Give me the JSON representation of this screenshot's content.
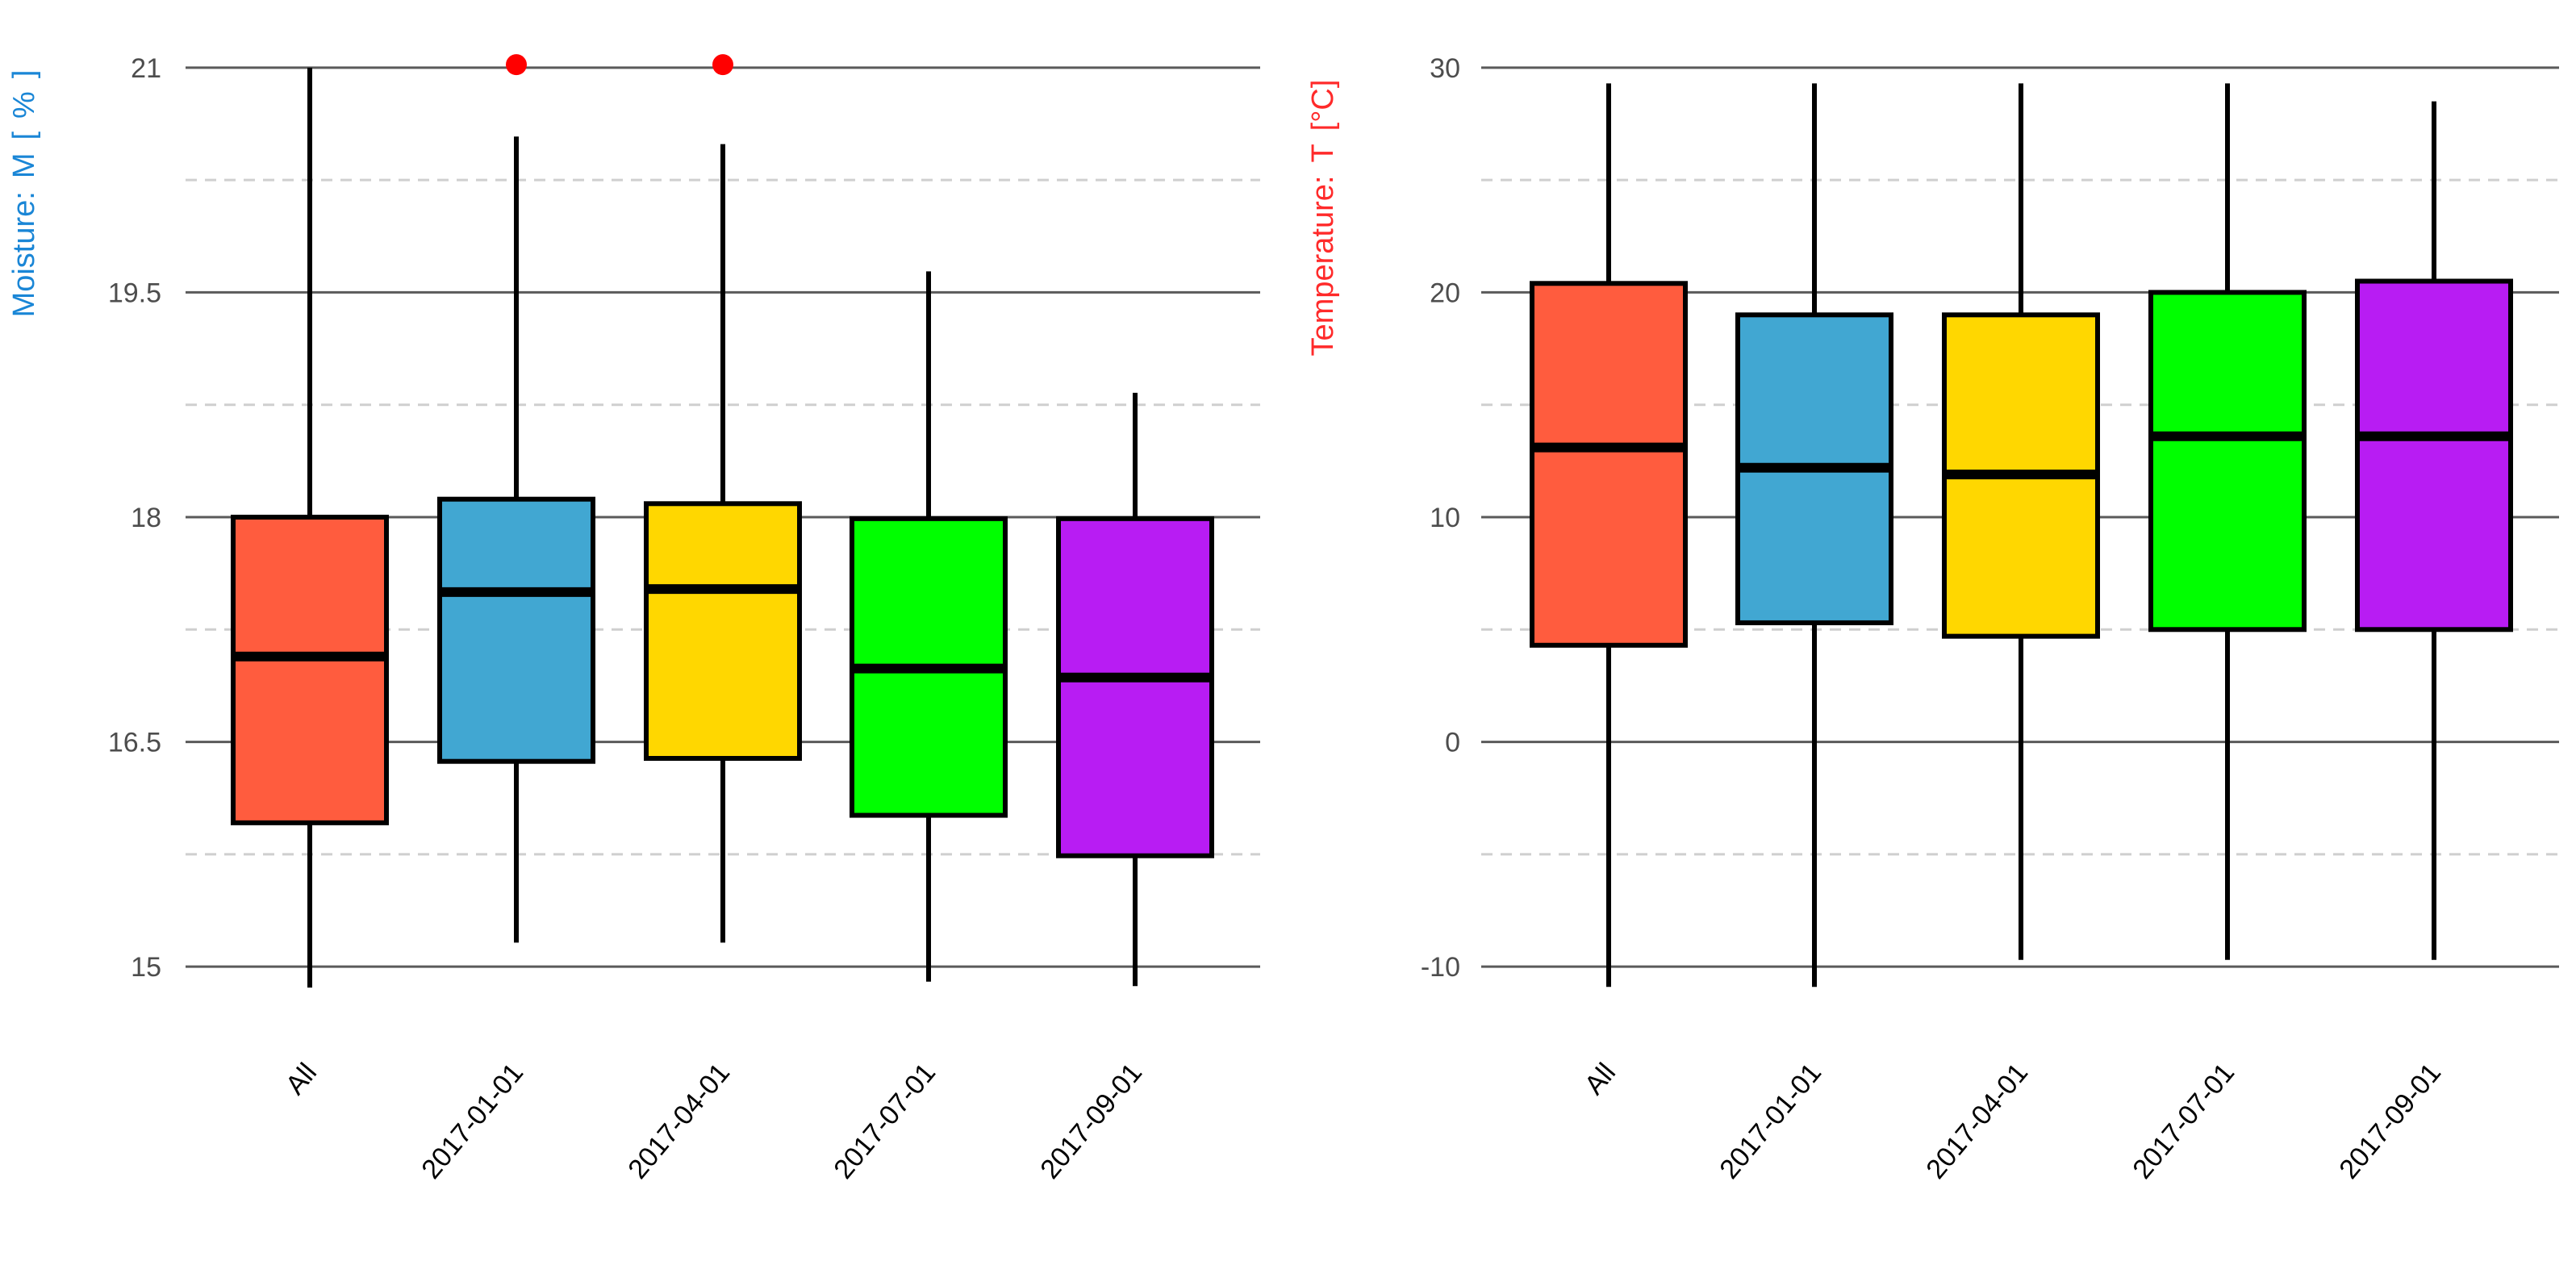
{
  "chart_data": [
    {
      "type": "boxplot",
      "ylabel_parts": [
        "Moisture:",
        "M",
        "[",
        "%",
        "]"
      ],
      "ylabel_color": "#1a86d6",
      "ylim": [
        14.85,
        21.15
      ],
      "y_major_ticks": [
        15,
        16.5,
        18,
        19.5,
        21
      ],
      "y_tick_labels": [
        "15",
        "16.5",
        "18",
        "19.5",
        "21"
      ],
      "y_minor_gridlines": [
        15.75,
        17.25,
        18.75,
        20.25
      ],
      "categories": [
        "All",
        "2017-01-01",
        "2017-04-01",
        "2017-07-01",
        "2017-09-01"
      ],
      "colors": [
        "#ff5c3e",
        "#41a7d2",
        "#ffd700",
        "#00ff00",
        "#b81cf3"
      ],
      "boxes": [
        {
          "low": 14.86,
          "q1": 15.96,
          "median": 17.07,
          "q3": 18.0,
          "high": 21.0
        },
        {
          "low": 15.16,
          "q1": 16.37,
          "median": 17.5,
          "q3": 18.12,
          "high": 20.54
        },
        {
          "low": 15.16,
          "q1": 16.39,
          "median": 17.52,
          "q3": 18.09,
          "high": 20.49
        },
        {
          "low": 14.9,
          "q1": 16.01,
          "median": 16.99,
          "q3": 17.99,
          "high": 19.64
        },
        {
          "low": 14.87,
          "q1": 15.74,
          "median": 16.93,
          "q3": 17.99,
          "high": 18.83
        }
      ],
      "outliers": [
        {
          "category": "2017-01-01",
          "value": 21.02,
          "color": "#ff0000"
        },
        {
          "category": "2017-04-01",
          "value": 21.02,
          "color": "#ff0000"
        }
      ]
    },
    {
      "type": "boxplot",
      "ylabel_parts": [
        "Temperature:",
        "T",
        "[°C]"
      ],
      "ylabel_color": "#ff2a2a",
      "ylim": [
        -11,
        31
      ],
      "y_major_ticks": [
        -10,
        0,
        10,
        20,
        30
      ],
      "y_tick_labels": [
        "-10",
        "0",
        "10",
        "20",
        "30"
      ],
      "y_minor_gridlines": [
        -5,
        5,
        15,
        25
      ],
      "categories": [
        "All",
        "2017-01-01",
        "2017-04-01",
        "2017-07-01",
        "2017-09-01"
      ],
      "colors": [
        "#ff5c3e",
        "#41a7d2",
        "#ffd700",
        "#00ff00",
        "#b81cf3"
      ],
      "boxes": [
        {
          "low": -10.9,
          "q1": 4.3,
          "median": 13.1,
          "q3": 20.4,
          "high": 29.3
        },
        {
          "low": -10.9,
          "q1": 5.3,
          "median": 12.2,
          "q3": 19.0,
          "high": 29.3
        },
        {
          "low": -9.7,
          "q1": 4.7,
          "median": 11.9,
          "q3": 19.0,
          "high": 29.3
        },
        {
          "low": -9.7,
          "q1": 5.0,
          "median": 13.6,
          "q3": 20.0,
          "high": 29.3
        },
        {
          "low": -9.7,
          "q1": 5.0,
          "median": 13.6,
          "q3": 20.5,
          "high": 28.5
        }
      ],
      "outliers": []
    }
  ]
}
